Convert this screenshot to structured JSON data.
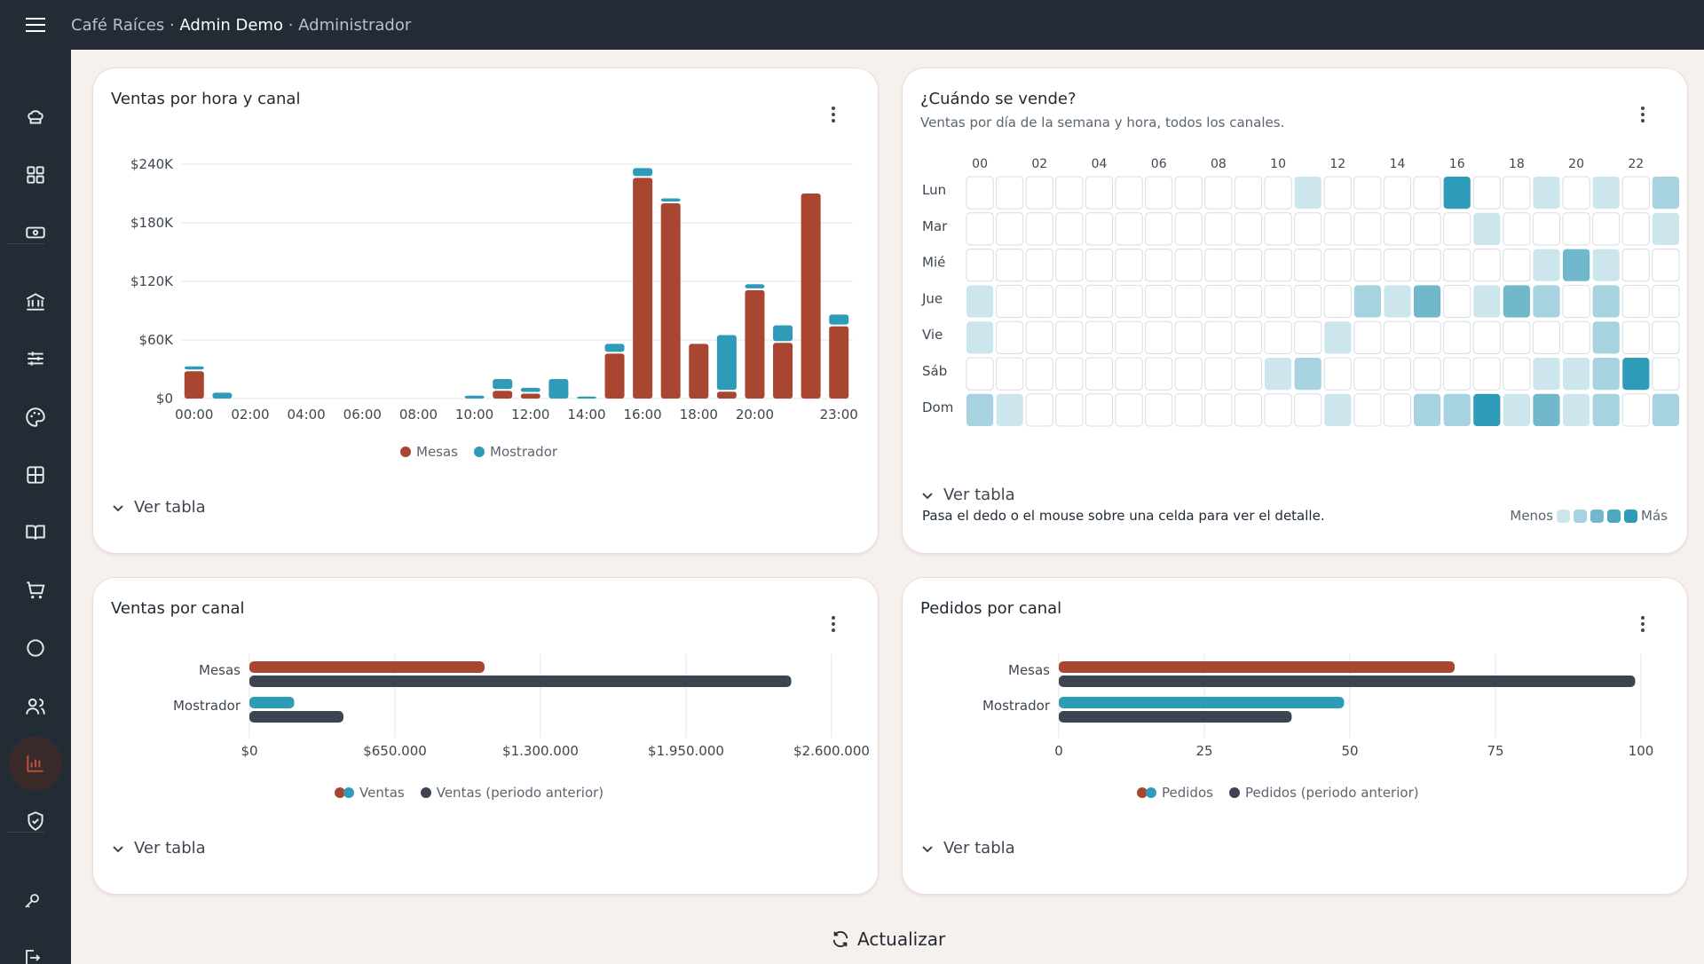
{
  "header": {
    "restaurant": "Café Raíces",
    "sep1": " · ",
    "user": "Admin Demo",
    "sep2": " · ",
    "role": "Administrador"
  },
  "sidebar": {
    "items": [
      "chef-hat-icon",
      "dashboard-icon",
      "cash-icon",
      "bank-icon",
      "sliders-icon",
      "palette-icon",
      "table-grid-icon",
      "menu-book-icon",
      "cart-icon",
      "circle-icon",
      "users-icon",
      "reports-icon",
      "shield-icon"
    ],
    "bottom": [
      "key-icon",
      "logout-icon"
    ],
    "active": "reports-icon"
  },
  "cards": {
    "hourly": {
      "title": "Ventas por hora y canal",
      "toggle": "Ver tabla"
    },
    "heatmap": {
      "title": "¿Cuándo se vende?",
      "subtitle": "Ventas por día de la semana y hora, todos los canales.",
      "hint": "Pasa el dedo o el mouse sobre una celda para ver el detalle.",
      "less": "Menos",
      "more": "Más",
      "toggle": "Ver tabla"
    },
    "sales_channel": {
      "title": "Ventas por canal",
      "toggle": "Ver tabla"
    },
    "orders_channel": {
      "title": "Pedidos por canal",
      "toggle": "Ver tabla"
    }
  },
  "refresh_label": "Actualizar",
  "colors": {
    "mesas": "#a84632",
    "mostrador": "#2e9bb8",
    "previous": "#3b4450",
    "heat": [
      "#ffffff",
      "#cde6ee",
      "#a7d3e1",
      "#72b8cd",
      "#2e9bb8"
    ]
  },
  "chart_data": [
    {
      "type": "bar",
      "stacked": true,
      "categories": [
        "00:00",
        "01:00",
        "02:00",
        "03:00",
        "04:00",
        "05:00",
        "06:00",
        "07:00",
        "08:00",
        "09:00",
        "10:00",
        "11:00",
        "12:00",
        "13:00",
        "14:00",
        "15:00",
        "16:00",
        "17:00",
        "18:00",
        "19:00",
        "20:00",
        "21:00",
        "22:00",
        "23:00"
      ],
      "tick_labels": [
        "00:00",
        "02:00",
        "04:00",
        "06:00",
        "08:00",
        "10:00",
        "12:00",
        "14:00",
        "16:00",
        "18:00",
        "20:00",
        "23:00"
      ],
      "series": [
        {
          "name": "Mesas",
          "values": [
            28000,
            0,
            0,
            0,
            0,
            0,
            0,
            0,
            0,
            0,
            0,
            8000,
            5000,
            0,
            0,
            46000,
            226000,
            200000,
            56000,
            7000,
            111000,
            57000,
            210000,
            74000
          ]
        },
        {
          "name": "Mostrador",
          "values": [
            5000,
            6000,
            0,
            0,
            0,
            0,
            0,
            0,
            0,
            0,
            3000,
            12000,
            6000,
            20000,
            2000,
            10000,
            10000,
            5000,
            0,
            58000,
            6000,
            18000,
            0,
            12000
          ]
        }
      ],
      "yticks": [
        "$0",
        "$60K",
        "$120K",
        "$180K",
        "$240K"
      ],
      "ylim": [
        0,
        240000
      ],
      "grid": true,
      "legend": "bottom"
    },
    {
      "type": "heatmap",
      "rows": [
        "Lun",
        "Mar",
        "Mié",
        "Jue",
        "Vie",
        "Sáb",
        "Dom"
      ],
      "columns": [
        "00",
        "01",
        "02",
        "03",
        "04",
        "05",
        "06",
        "07",
        "08",
        "09",
        "10",
        "11",
        "12",
        "13",
        "14",
        "15",
        "16",
        "17",
        "18",
        "19",
        "20",
        "21",
        "22",
        "23"
      ],
      "column_labels": [
        "00",
        "02",
        "04",
        "06",
        "08",
        "10",
        "12",
        "14",
        "16",
        "18",
        "20",
        "22"
      ],
      "levels": [
        [
          0,
          0,
          0,
          0,
          0,
          0,
          0,
          0,
          0,
          0,
          0,
          1,
          0,
          0,
          0,
          0,
          4,
          0,
          0,
          1,
          0,
          1,
          0,
          2
        ],
        [
          0,
          0,
          0,
          0,
          0,
          0,
          0,
          0,
          0,
          0,
          0,
          0,
          0,
          0,
          0,
          0,
          0,
          1,
          0,
          0,
          0,
          0,
          0,
          1
        ],
        [
          0,
          0,
          0,
          0,
          0,
          0,
          0,
          0,
          0,
          0,
          0,
          0,
          0,
          0,
          0,
          0,
          0,
          0,
          0,
          1,
          3,
          1,
          0,
          0
        ],
        [
          1,
          0,
          0,
          0,
          0,
          0,
          0,
          0,
          0,
          0,
          0,
          0,
          0,
          2,
          1,
          3,
          0,
          1,
          3,
          2,
          0,
          2,
          0,
          0
        ],
        [
          1,
          0,
          0,
          0,
          0,
          0,
          0,
          0,
          0,
          0,
          0,
          0,
          1,
          0,
          0,
          0,
          0,
          0,
          0,
          0,
          0,
          2,
          0,
          0
        ],
        [
          0,
          0,
          0,
          0,
          0,
          0,
          0,
          0,
          0,
          0,
          1,
          2,
          0,
          0,
          0,
          0,
          0,
          0,
          0,
          1,
          1,
          2,
          4,
          0
        ],
        [
          2,
          1,
          0,
          0,
          0,
          0,
          0,
          0,
          0,
          0,
          0,
          0,
          1,
          0,
          0,
          2,
          2,
          4,
          1,
          3,
          1,
          2,
          0,
          2
        ]
      ]
    },
    {
      "type": "bar",
      "orientation": "horizontal",
      "categories": [
        "Mesas",
        "Mostrador"
      ],
      "series": [
        {
          "name": "Ventas",
          "values": [
            1050000,
            200000
          ]
        },
        {
          "name": "Ventas (periodo anterior)",
          "values": [
            2420000,
            420000
          ]
        }
      ],
      "xticks": [
        "$0",
        "$650.000",
        "$1.300.000",
        "$1.950.000",
        "$2.600.000"
      ],
      "xlim": [
        0,
        2600000
      ],
      "legend": "bottom"
    },
    {
      "type": "bar",
      "orientation": "horizontal",
      "categories": [
        "Mesas",
        "Mostrador"
      ],
      "series": [
        {
          "name": "Pedidos",
          "values": [
            68,
            49
          ]
        },
        {
          "name": "Pedidos (periodo anterior)",
          "values": [
            99,
            40
          ]
        }
      ],
      "xticks": [
        "0",
        "25",
        "50",
        "75",
        "100"
      ],
      "xlim": [
        0,
        100
      ],
      "legend": "bottom"
    }
  ]
}
